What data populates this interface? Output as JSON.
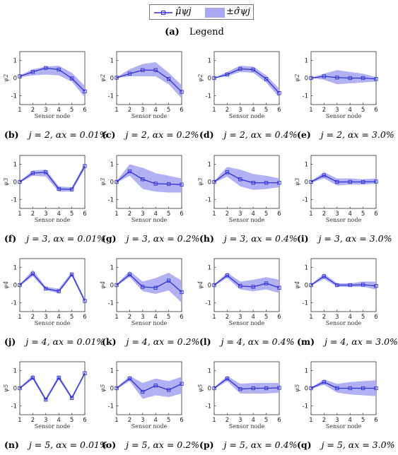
{
  "legend": {
    "mean_label": "μ̂ψj",
    "std_label": "±σ̂ψj",
    "caption_label": "(a)",
    "caption_text": "Legend"
  },
  "colors": {
    "line": "#2f2fd6",
    "band": "#a9a9f2",
    "marker_edge": "#2f2fd6"
  },
  "chart_data": [
    {
      "id": "b",
      "label": "(b)",
      "caption": "j = 2, αx = 0.01%",
      "ylabel": "ψ2",
      "xlabel": "Sensor node",
      "type": "line",
      "x": [
        1,
        2,
        3,
        4,
        5,
        6
      ],
      "ylim": [
        -1.5,
        1.5
      ],
      "yticks": [
        -1,
        0,
        1
      ],
      "xticks": [
        1,
        2,
        3,
        4,
        5,
        6
      ],
      "series": [
        {
          "values": [
            0.1,
            0.35,
            0.57,
            0.48,
            -0.02,
            -0.75
          ],
          "lower": [
            0.05,
            0.15,
            0.2,
            0.15,
            -0.2,
            -1.1
          ],
          "upper": [
            0.15,
            0.5,
            0.65,
            0.7,
            0.3,
            -0.45
          ]
        }
      ]
    },
    {
      "id": "c",
      "label": "(c)",
      "caption": "j = 2, αx = 0.2%",
      "ylabel": "ψ2",
      "xlabel": "Sensor node",
      "type": "line",
      "x": [
        1,
        2,
        3,
        4,
        5,
        6
      ],
      "ylim": [
        -1.5,
        1.5
      ],
      "yticks": [
        -1,
        0,
        1
      ],
      "xticks": [
        1,
        2,
        3,
        4,
        5,
        6
      ],
      "series": [
        {
          "values": [
            0.02,
            0.25,
            0.45,
            0.45,
            -0.05,
            -0.78
          ],
          "lower": [
            0.0,
            0.1,
            0.1,
            0.1,
            -0.35,
            -1.15
          ],
          "upper": [
            0.05,
            0.5,
            0.8,
            0.9,
            0.3,
            -0.4
          ]
        }
      ]
    },
    {
      "id": "d",
      "label": "(d)",
      "caption": "j = 2, αx = 0.4%",
      "ylabel": "ψ2",
      "xlabel": "Sensor node",
      "type": "line",
      "x": [
        1,
        2,
        3,
        4,
        5,
        6
      ],
      "ylim": [
        -1.5,
        1.5
      ],
      "yticks": [
        -1,
        0,
        1
      ],
      "xticks": [
        1,
        2,
        3,
        4,
        5,
        6
      ],
      "series": [
        {
          "values": [
            0.0,
            0.2,
            0.52,
            0.48,
            -0.05,
            -0.85
          ],
          "lower": [
            0.0,
            0.1,
            0.35,
            0.3,
            -0.25,
            -1.1
          ],
          "upper": [
            0.02,
            0.35,
            0.7,
            0.65,
            0.15,
            -0.6
          ]
        }
      ]
    },
    {
      "id": "e",
      "label": "(e)",
      "caption": "j = 2, αx = 3.0%",
      "ylabel": "ψ2",
      "xlabel": "Sensor node",
      "type": "line",
      "x": [
        1,
        2,
        3,
        4,
        5,
        6
      ],
      "ylim": [
        -1.5,
        1.5
      ],
      "yticks": [
        -1,
        0,
        1
      ],
      "xticks": [
        1,
        2,
        3,
        4,
        5,
        6
      ],
      "series": [
        {
          "values": [
            0.0,
            0.1,
            0.03,
            0.0,
            0.0,
            -0.05
          ],
          "lower": [
            0.0,
            -0.1,
            -0.35,
            -0.3,
            -0.25,
            -0.2
          ],
          "upper": [
            0.02,
            0.25,
            0.45,
            0.35,
            0.25,
            0.05
          ]
        }
      ]
    },
    {
      "id": "f",
      "label": "(f)",
      "caption": "j = 3, αx = 0.01%",
      "ylabel": "ψ3",
      "xlabel": "Sensor node",
      "type": "line",
      "x": [
        1,
        2,
        3,
        4,
        5,
        6
      ],
      "ylim": [
        -1.5,
        1.5
      ],
      "yticks": [
        -1,
        0,
        1
      ],
      "xticks": [
        1,
        2,
        3,
        4,
        5,
        6
      ],
      "series": [
        {
          "values": [
            0.0,
            0.5,
            0.55,
            -0.4,
            -0.42,
            0.9
          ],
          "lower": [
            -0.05,
            0.35,
            0.3,
            -0.55,
            -0.55,
            0.75
          ],
          "upper": [
            0.05,
            0.65,
            0.7,
            -0.25,
            -0.3,
            1.05
          ]
        }
      ]
    },
    {
      "id": "g",
      "label": "(g)",
      "caption": "j = 3, αx = 0.2%",
      "ylabel": "ψ3",
      "xlabel": "Sensor node",
      "type": "line",
      "x": [
        1,
        2,
        3,
        4,
        5,
        6
      ],
      "ylim": [
        -1.5,
        1.5
      ],
      "yticks": [
        -1,
        0,
        1
      ],
      "xticks": [
        1,
        2,
        3,
        4,
        5,
        6
      ],
      "series": [
        {
          "values": [
            0.0,
            0.6,
            0.15,
            -0.1,
            -0.12,
            -0.15
          ],
          "lower": [
            -0.05,
            0.35,
            -0.4,
            -0.55,
            -0.6,
            -0.6
          ],
          "upper": [
            0.05,
            1.0,
            0.8,
            0.5,
            0.35,
            0.2
          ]
        }
      ]
    },
    {
      "id": "h",
      "label": "(h)",
      "caption": "j = 3, αx = 0.4%",
      "ylabel": "ψ3",
      "xlabel": "Sensor node",
      "type": "line",
      "x": [
        1,
        2,
        3,
        4,
        5,
        6
      ],
      "ylim": [
        -1.5,
        1.5
      ],
      "yticks": [
        -1,
        0,
        1
      ],
      "xticks": [
        1,
        2,
        3,
        4,
        5,
        6
      ],
      "series": [
        {
          "values": [
            0.0,
            0.55,
            0.15,
            -0.05,
            -0.05,
            -0.05
          ],
          "lower": [
            -0.05,
            0.3,
            -0.25,
            -0.45,
            -0.4,
            -0.3
          ],
          "upper": [
            0.05,
            0.85,
            0.7,
            0.45,
            0.35,
            0.2
          ]
        }
      ]
    },
    {
      "id": "i",
      "label": "(i)",
      "caption": "j = 3, αx = 3.0%",
      "ylabel": "ψ3",
      "xlabel": "Sensor node",
      "type": "line",
      "x": [
        1,
        2,
        3,
        4,
        5,
        6
      ],
      "ylim": [
        -1.5,
        1.5
      ],
      "yticks": [
        -1,
        0,
        1
      ],
      "xticks": [
        1,
        2,
        3,
        4,
        5,
        6
      ],
      "series": [
        {
          "values": [
            0.0,
            0.38,
            0.0,
            0.0,
            0.0,
            0.02
          ],
          "lower": [
            -0.05,
            0.2,
            -0.2,
            -0.15,
            -0.15,
            -0.1
          ],
          "upper": [
            0.05,
            0.55,
            0.2,
            0.2,
            0.15,
            0.2
          ]
        }
      ]
    },
    {
      "id": "j",
      "label": "(j)",
      "caption": "j = 4, αx = 0.01%",
      "ylabel": "ψ4",
      "xlabel": "Sensor node",
      "type": "line",
      "x": [
        1,
        2,
        3,
        4,
        5,
        6
      ],
      "ylim": [
        -1.5,
        1.5
      ],
      "yticks": [
        -1,
        0,
        1
      ],
      "xticks": [
        1,
        2,
        3,
        4,
        5,
        6
      ],
      "series": [
        {
          "values": [
            0.0,
            0.65,
            -0.2,
            -0.35,
            0.6,
            -0.9
          ],
          "lower": [
            -0.05,
            0.5,
            -0.3,
            -0.45,
            0.5,
            -1.0
          ],
          "upper": [
            0.05,
            0.85,
            -0.1,
            -0.2,
            0.75,
            -0.75
          ]
        }
      ]
    },
    {
      "id": "k",
      "label": "(k)",
      "caption": "j = 4, αx = 0.2%",
      "ylabel": "ψ4",
      "xlabel": "Sensor node",
      "type": "line",
      "x": [
        1,
        2,
        3,
        4,
        5,
        6
      ],
      "ylim": [
        -1.5,
        1.5
      ],
      "yticks": [
        -1,
        0,
        1
      ],
      "xticks": [
        1,
        2,
        3,
        4,
        5,
        6
      ],
      "series": [
        {
          "values": [
            0.0,
            0.6,
            -0.1,
            -0.15,
            0.25,
            -0.4
          ],
          "lower": [
            -0.05,
            0.45,
            -0.35,
            -0.5,
            -0.3,
            -1.0
          ],
          "upper": [
            0.05,
            0.8,
            0.2,
            0.4,
            0.7,
            0.25
          ]
        }
      ]
    },
    {
      "id": "l",
      "label": "(l)",
      "caption": "j = 4, αx = 0.4%",
      "ylabel": "ψ4",
      "xlabel": "Sensor node",
      "type": "line",
      "x": [
        1,
        2,
        3,
        4,
        5,
        6
      ],
      "ylim": [
        -1.5,
        1.5
      ],
      "yticks": [
        -1,
        0,
        1
      ],
      "xticks": [
        1,
        2,
        3,
        4,
        5,
        6
      ],
      "series": [
        {
          "values": [
            0.0,
            0.55,
            -0.05,
            -0.1,
            0.1,
            -0.15
          ],
          "lower": [
            -0.05,
            0.4,
            -0.25,
            -0.35,
            -0.25,
            -0.45
          ],
          "upper": [
            0.05,
            0.7,
            0.2,
            0.3,
            0.45,
            0.3
          ]
        }
      ]
    },
    {
      "id": "m",
      "label": "(m)",
      "caption": "j = 4, αx = 3.0%",
      "ylabel": "ψ4",
      "xlabel": "Sensor node",
      "type": "line",
      "x": [
        1,
        2,
        3,
        4,
        5,
        6
      ],
      "ylim": [
        -1.5,
        1.5
      ],
      "yticks": [
        -1,
        0,
        1
      ],
      "xticks": [
        1,
        2,
        3,
        4,
        5,
        6
      ],
      "series": [
        {
          "values": [
            0.0,
            0.5,
            0.0,
            0.0,
            0.02,
            -0.05
          ],
          "lower": [
            -0.05,
            0.35,
            -0.1,
            -0.1,
            -0.1,
            -0.25
          ],
          "upper": [
            0.05,
            0.65,
            0.1,
            0.1,
            0.2,
            0.2
          ]
        }
      ]
    },
    {
      "id": "n",
      "label": "(n)",
      "caption": "j = 5, αx = 0.01%",
      "ylabel": "ψ5",
      "xlabel": "Sensor node",
      "type": "line",
      "x": [
        1,
        2,
        3,
        4,
        5,
        6
      ],
      "ylim": [
        -1.5,
        1.5
      ],
      "yticks": [
        -1,
        0,
        1
      ],
      "xticks": [
        1,
        2,
        3,
        4,
        5,
        6
      ],
      "series": [
        {
          "values": [
            0.0,
            0.6,
            -0.65,
            0.6,
            -0.55,
            0.85
          ],
          "lower": [
            -0.05,
            0.5,
            -0.75,
            0.5,
            -0.65,
            0.75
          ],
          "upper": [
            0.05,
            0.75,
            -0.55,
            0.75,
            -0.45,
            0.95
          ]
        }
      ]
    },
    {
      "id": "o",
      "label": "(o)",
      "caption": "j = 5, αx = 0.2%",
      "ylabel": "ψ5",
      "xlabel": "Sensor node",
      "type": "line",
      "x": [
        1,
        2,
        3,
        4,
        5,
        6
      ],
      "ylim": [
        -1.5,
        1.5
      ],
      "yticks": [
        -1,
        0,
        1
      ],
      "xticks": [
        1,
        2,
        3,
        4,
        5,
        6
      ],
      "series": [
        {
          "values": [
            0.0,
            0.55,
            -0.2,
            0.15,
            -0.1,
            0.25
          ],
          "lower": [
            -0.05,
            0.4,
            -0.6,
            -0.4,
            -0.5,
            -0.3
          ],
          "upper": [
            0.05,
            0.7,
            0.3,
            0.55,
            0.4,
            0.65
          ]
        }
      ]
    },
    {
      "id": "p",
      "label": "(p)",
      "caption": "j = 5, αx = 0.4%",
      "ylabel": "ψ5",
      "xlabel": "Sensor node",
      "type": "line",
      "x": [
        1,
        2,
        3,
        4,
        5,
        6
      ],
      "ylim": [
        -1.5,
        1.5
      ],
      "yticks": [
        -1,
        0,
        1
      ],
      "xticks": [
        1,
        2,
        3,
        4,
        5,
        6
      ],
      "series": [
        {
          "values": [
            0.0,
            0.55,
            -0.05,
            0.0,
            0.0,
            0.02
          ],
          "lower": [
            -0.05,
            0.4,
            -0.3,
            -0.3,
            -0.3,
            -0.25
          ],
          "upper": [
            0.05,
            0.7,
            0.25,
            0.3,
            0.3,
            0.3
          ]
        }
      ]
    },
    {
      "id": "q",
      "label": "(q)",
      "caption": "j = 5, αx = 3.0%",
      "ylabel": "ψ5",
      "xlabel": "Sensor node",
      "type": "line",
      "x": [
        1,
        2,
        3,
        4,
        5,
        6
      ],
      "ylim": [
        -1.5,
        1.5
      ],
      "yticks": [
        -1,
        0,
        1
      ],
      "xticks": [
        1,
        2,
        3,
        4,
        5,
        6
      ],
      "series": [
        {
          "values": [
            0.0,
            0.35,
            0.0,
            0.0,
            0.0,
            0.0
          ],
          "lower": [
            -0.05,
            0.2,
            -0.25,
            -0.35,
            -0.4,
            -0.45
          ],
          "upper": [
            0.05,
            0.5,
            0.25,
            0.35,
            0.4,
            0.45
          ]
        }
      ]
    }
  ]
}
